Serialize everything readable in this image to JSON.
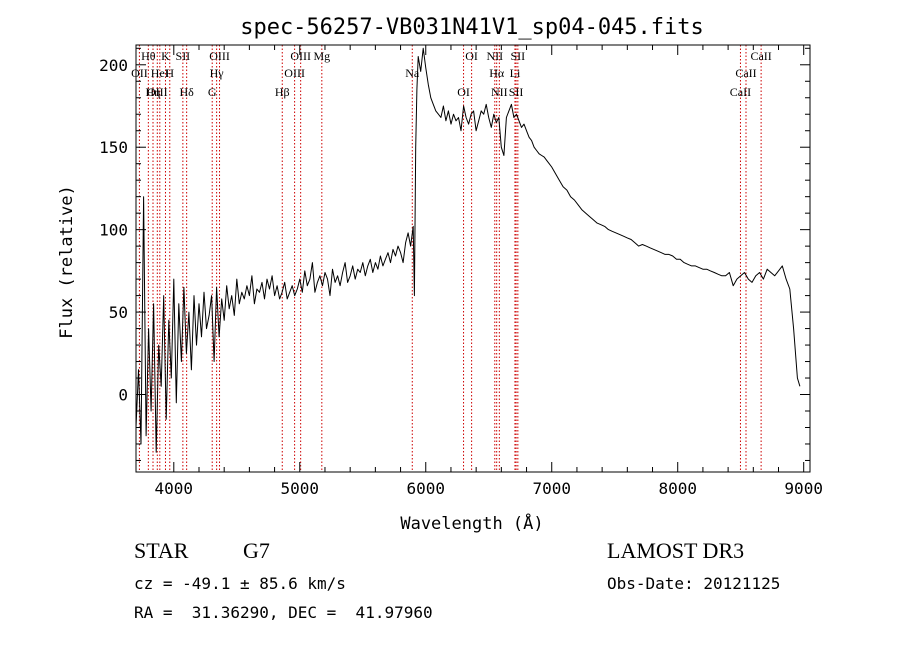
{
  "chart_data": {
    "type": "line",
    "title": "spec-56257-VB031N41V1_sp04-045.fits",
    "xlabel": "Wavelength (Å)",
    "ylabel": "Flux (relative)",
    "xlim": [
      3700,
      9050
    ],
    "ylim": [
      -47,
      212
    ],
    "xticks": [
      4000,
      5000,
      6000,
      7000,
      8000,
      9000
    ],
    "yticks": [
      0,
      50,
      100,
      150,
      200
    ],
    "grid": false,
    "series": [
      {
        "name": "spectrum",
        "x": [
          3700,
          3720,
          3740,
          3760,
          3780,
          3800,
          3820,
          3840,
          3860,
          3880,
          3900,
          3920,
          3940,
          3960,
          3980,
          4000,
          4020,
          4040,
          4060,
          4080,
          4100,
          4120,
          4140,
          4160,
          4180,
          4200,
          4220,
          4240,
          4260,
          4280,
          4300,
          4320,
          4340,
          4360,
          4380,
          4400,
          4420,
          4440,
          4460,
          4480,
          4500,
          4520,
          4540,
          4560,
          4580,
          4600,
          4620,
          4640,
          4660,
          4680,
          4700,
          4720,
          4740,
          4760,
          4780,
          4800,
          4820,
          4840,
          4860,
          4880,
          4900,
          4920,
          4940,
          4960,
          4980,
          5000,
          5020,
          5040,
          5060,
          5080,
          5100,
          5120,
          5140,
          5160,
          5180,
          5200,
          5220,
          5240,
          5260,
          5280,
          5300,
          5320,
          5340,
          5360,
          5380,
          5400,
          5420,
          5440,
          5460,
          5480,
          5500,
          5520,
          5540,
          5560,
          5580,
          5600,
          5620,
          5640,
          5660,
          5680,
          5700,
          5720,
          5740,
          5760,
          5780,
          5800,
          5820,
          5840,
          5860,
          5880,
          5900,
          5910,
          5920,
          5930,
          5940,
          5960,
          5980,
          6000,
          6020,
          6040,
          6060,
          6080,
          6100,
          6120,
          6140,
          6160,
          6180,
          6200,
          6220,
          6240,
          6260,
          6280,
          6300,
          6320,
          6340,
          6360,
          6380,
          6400,
          6420,
          6440,
          6460,
          6480,
          6500,
          6520,
          6540,
          6560,
          6580,
          6600,
          6620,
          6640,
          6660,
          6680,
          6700,
          6720,
          6740,
          6760,
          6780,
          6800,
          6820,
          6840,
          6860,
          6880,
          6900,
          6920,
          6940,
          6960,
          6980,
          7000,
          7030,
          7060,
          7090,
          7120,
          7150,
          7180,
          7210,
          7240,
          7270,
          7300,
          7330,
          7360,
          7390,
          7420,
          7450,
          7480,
          7510,
          7540,
          7570,
          7600,
          7630,
          7660,
          7690,
          7720,
          7750,
          7780,
          7810,
          7840,
          7870,
          7900,
          7930,
          7960,
          7990,
          8020,
          8050,
          8080,
          8110,
          8140,
          8170,
          8200,
          8230,
          8260,
          8290,
          8320,
          8350,
          8380,
          8410,
          8440,
          8470,
          8500,
          8530,
          8560,
          8590,
          8620,
          8650,
          8680,
          8710,
          8740,
          8770,
          8800,
          8830,
          8860,
          8890,
          8920,
          8950,
          8970,
          8990,
          9000,
          9010,
          9020
        ],
        "flux": [
          -20,
          15,
          -30,
          120,
          -25,
          40,
          -10,
          55,
          -35,
          30,
          5,
          60,
          -15,
          45,
          10,
          70,
          -5,
          55,
          20,
          65,
          25,
          50,
          15,
          60,
          30,
          55,
          35,
          62,
          40,
          48,
          60,
          20,
          65,
          35,
          58,
          45,
          66,
          52,
          60,
          48,
          70,
          55,
          62,
          58,
          66,
          60,
          72,
          55,
          64,
          62,
          68,
          58,
          70,
          64,
          72,
          60,
          66,
          58,
          62,
          68,
          58,
          62,
          66,
          60,
          64,
          70,
          62,
          75,
          66,
          70,
          80,
          62,
          68,
          72,
          66,
          74,
          70,
          60,
          76,
          68,
          72,
          66,
          74,
          80,
          68,
          72,
          78,
          70,
          76,
          74,
          80,
          72,
          78,
          82,
          74,
          80,
          76,
          84,
          78,
          82,
          86,
          80,
          88,
          84,
          90,
          86,
          80,
          92,
          98,
          90,
          102,
          60,
          150,
          185,
          205,
          196,
          210,
          198,
          188,
          180,
          176,
          172,
          170,
          168,
          175,
          166,
          172,
          164,
          170,
          166,
          168,
          160,
          175,
          168,
          164,
          170,
          172,
          160,
          166,
          172,
          170,
          176,
          168,
          162,
          170,
          165,
          168,
          150,
          145,
          168,
          172,
          176,
          168,
          170,
          166,
          162,
          164,
          160,
          156,
          154,
          150,
          148,
          146,
          145,
          144,
          142,
          140,
          138,
          134,
          130,
          126,
          124,
          120,
          118,
          115,
          112,
          110,
          108,
          106,
          104,
          103,
          102,
          100,
          99,
          98,
          97,
          96,
          95,
          94,
          92,
          90,
          91,
          90,
          89,
          88,
          87,
          86,
          85,
          85,
          84,
          82,
          82,
          80,
          79,
          78,
          78,
          77,
          76,
          76,
          75,
          74,
          73,
          72,
          72,
          74,
          66,
          70,
          72,
          74,
          70,
          68,
          72,
          74,
          70,
          76,
          74,
          72,
          75,
          78,
          70,
          64,
          40,
          10,
          5
        ]
      }
    ],
    "line_markers": [
      {
        "label": "Hθ",
        "wl": 3798
      },
      {
        "label": "OII",
        "wl": 3727
      },
      {
        "label": "OIII",
        "wl": 3869
      },
      {
        "label": "K",
        "wl": 3934
      },
      {
        "label": "HeI",
        "wl": 3889
      },
      {
        "label": "Hη",
        "wl": 3835
      },
      {
        "label": "SII",
        "wl": 4072
      },
      {
        "label": "H",
        "wl": 3968
      },
      {
        "label": "Hδ",
        "wl": 4102
      },
      {
        "label": "OIII",
        "wl": 4363
      },
      {
        "label": "Hγ",
        "wl": 4340
      },
      {
        "label": "G",
        "wl": 4305
      },
      {
        "label": "OIII",
        "wl": 5007
      },
      {
        "label": "OIII",
        "wl": 4959
      },
      {
        "label": "Hβ",
        "wl": 4861
      },
      {
        "label": "Mg",
        "wl": 5175
      },
      {
        "label": "Na",
        "wl": 5893
      },
      {
        "label": "OI",
        "wl": 6300
      },
      {
        "label": "OI",
        "wl": 6364
      },
      {
        "label": "Hα",
        "wl": 6563
      },
      {
        "label": "SII",
        "wl": 6717
      },
      {
        "label": "NII",
        "wl": 6548
      },
      {
        "label": "Li",
        "wl": 6708
      },
      {
        "label": "NII",
        "wl": 6584
      },
      {
        "label": "SII",
        "wl": 6731
      },
      {
        "label": "CaII",
        "wl": 8542
      },
      {
        "label": "CaII",
        "wl": 8498
      },
      {
        "label": "CaII",
        "wl": 8662
      }
    ]
  },
  "info": {
    "object_class": "STAR",
    "subclass": "G7",
    "survey": "LAMOST DR3",
    "redshift": "cz = -49.1 ± 85.6 km/s",
    "obs_date": "Obs-Date: 20121125",
    "coords": "RA =  31.36290, DEC =  41.97960"
  },
  "colors": {
    "axis": "#000000",
    "spectrum": "#000000",
    "marker_line": "#cc0000"
  }
}
